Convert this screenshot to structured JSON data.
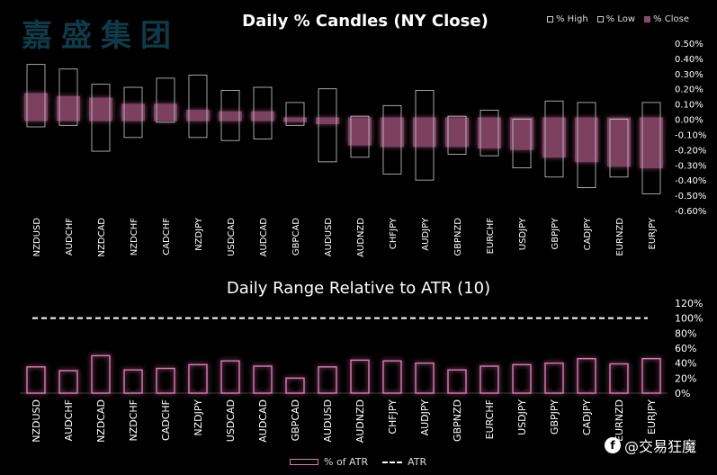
{
  "watermark": "嘉盛集团",
  "brand": {
    "text": "@交易狂魔",
    "logo_icon": "facebook-icon"
  },
  "colors": {
    "background": "#000000",
    "close_fill": "#8a4a6a",
    "atr_bar": "#e07ab0",
    "candle_outline": "#cccccc"
  },
  "chart_data": [
    {
      "type": "candlestick",
      "title": "Daily % Candles (NY Close)",
      "legend": [
        "% High",
        "% Low",
        "% Close"
      ],
      "legend_position": "top-right",
      "categories": [
        "NZDUSD",
        "AUDCHF",
        "NZDCAD",
        "NZDCHF",
        "CADCHF",
        "NZDJPY",
        "USDCAD",
        "AUDCAD",
        "GBPCAD",
        "AUDUSD",
        "AUDNZD",
        "CHFJPY",
        "AUDJPY",
        "GBPNZD",
        "EURCHF",
        "USDJPY",
        "GBPJPY",
        "CADJPY",
        "EURNZD",
        "EURJPY"
      ],
      "high": [
        0.36,
        0.33,
        0.23,
        0.21,
        0.27,
        0.29,
        0.19,
        0.21,
        0.11,
        0.2,
        0.02,
        0.09,
        0.19,
        0.02,
        0.06,
        0.0,
        0.12,
        0.11,
        0.0,
        0.11
      ],
      "low": [
        -0.05,
        -0.04,
        -0.21,
        -0.12,
        -0.02,
        -0.12,
        -0.14,
        -0.13,
        -0.04,
        -0.28,
        -0.25,
        -0.36,
        -0.4,
        -0.23,
        -0.24,
        -0.32,
        -0.38,
        -0.45,
        -0.38,
        -0.49
      ],
      "close": [
        0.16,
        0.14,
        0.13,
        0.09,
        0.09,
        0.05,
        0.04,
        0.04,
        0.0,
        -0.02,
        -0.16,
        -0.17,
        -0.17,
        -0.17,
        -0.18,
        -0.19,
        -0.24,
        -0.27,
        -0.3,
        -0.31
      ],
      "y_ticks": [
        "0.50%",
        "0.40%",
        "0.30%",
        "0.20%",
        "0.10%",
        "0.00%",
        "-0.10%",
        "-0.20%",
        "-0.30%",
        "-0.40%",
        "-0.50%",
        "-0.60%"
      ],
      "ylim": [
        -0.6,
        0.5
      ],
      "grid": false
    },
    {
      "type": "bar",
      "title": "Daily Range Relative to ATR (10)",
      "legend": [
        "% of ATR",
        "ATR"
      ],
      "legend_position": "bottom",
      "categories": [
        "NZDUSD",
        "AUDCHF",
        "NZDCAD",
        "NZDCHF",
        "CADCHF",
        "NZDJPY",
        "USDCAD",
        "AUDCAD",
        "GBPCAD",
        "AUDUSD",
        "AUDNZD",
        "CHFJPY",
        "AUDJPY",
        "GBPNZD",
        "EURCHF",
        "USDJPY",
        "GBPJPY",
        "CADJPY",
        "EURNZD",
        "EURJPY"
      ],
      "values": [
        35,
        30,
        50,
        31,
        33,
        38,
        43,
        36,
        20,
        35,
        44,
        43,
        40,
        31,
        36,
        38,
        40,
        46,
        39,
        46
      ],
      "atr_line": 100,
      "y_ticks": [
        "120%",
        "100%",
        "80%",
        "60%",
        "40%",
        "20%",
        "0%"
      ],
      "ylim": [
        0,
        120
      ],
      "grid": false
    }
  ]
}
